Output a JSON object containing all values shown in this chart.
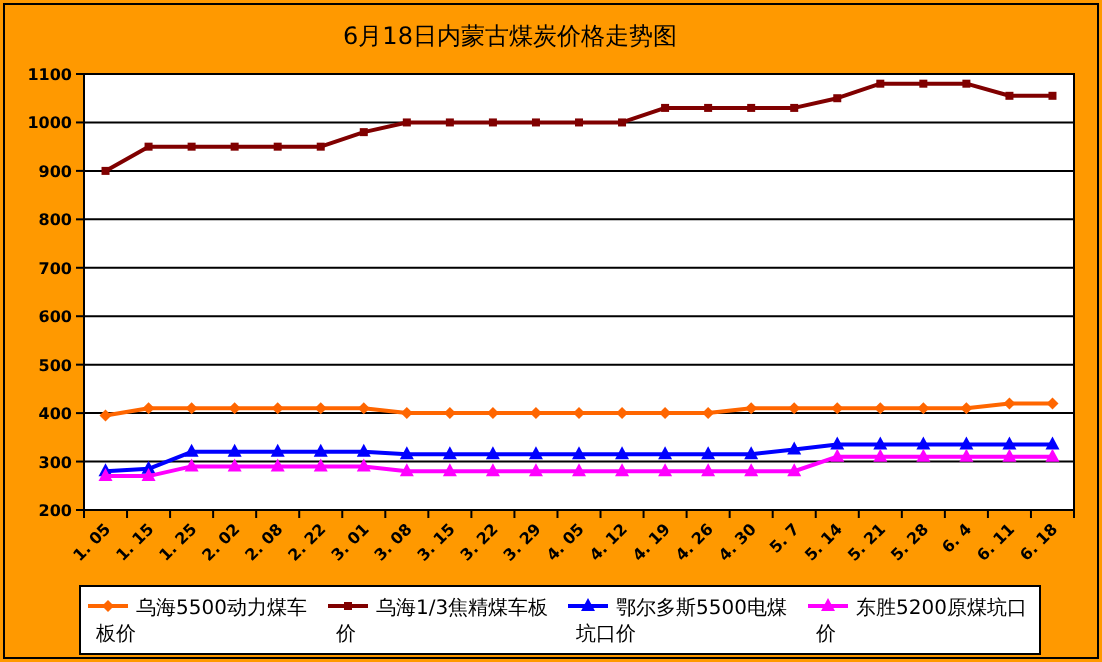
{
  "chart_data": {
    "type": "line",
    "title": "6月18日内蒙古煤炭价格走势图",
    "categories": [
      "1. 05",
      "1. 15",
      "1. 25",
      "2. 02",
      "2. 08",
      "2. 22",
      "3. 01",
      "3. 08",
      "3. 15",
      "3. 22",
      "3. 29",
      "4. 05",
      "4. 12",
      "4. 19",
      "4. 26",
      "4. 30",
      "5. 7",
      "5. 14",
      "5. 21",
      "5. 28",
      "6. 4",
      "6. 11",
      "6. 18"
    ],
    "series": [
      {
        "name": "乌海5500动力煤车板价",
        "color": "#ff6600",
        "marker": "diamond",
        "values": [
          395,
          410,
          410,
          410,
          410,
          410,
          410,
          400,
          400,
          400,
          400,
          400,
          400,
          400,
          400,
          410,
          410,
          410,
          410,
          410,
          410,
          420,
          420
        ]
      },
      {
        "name": "乌海1/3焦精煤车板价",
        "color": "#800000",
        "marker": "square",
        "values": [
          900,
          950,
          950,
          950,
          950,
          950,
          980,
          1000,
          1000,
          1000,
          1000,
          1000,
          1000,
          1030,
          1030,
          1030,
          1030,
          1050,
          1080,
          1080,
          1080,
          1055,
          1055
        ]
      },
      {
        "name": "鄂尔多斯5500电煤坑口价",
        "color": "#0000ff",
        "marker": "triangle",
        "values": [
          280,
          285,
          320,
          320,
          320,
          320,
          320,
          315,
          315,
          315,
          315,
          315,
          315,
          315,
          315,
          315,
          325,
          335,
          335,
          335,
          335,
          335,
          335
        ]
      },
      {
        "name": "东胜5200原煤坑口价",
        "color": "#ff00ff",
        "marker": "triangle",
        "values": [
          270,
          270,
          290,
          290,
          290,
          290,
          290,
          280,
          280,
          280,
          280,
          280,
          280,
          280,
          280,
          280,
          280,
          310,
          310,
          310,
          310,
          310,
          310
        ]
      }
    ],
    "ylim": [
      200,
      1100
    ],
    "yticks": [
      200,
      300,
      400,
      500,
      600,
      700,
      800,
      900,
      1000,
      1100
    ],
    "grid": "y",
    "legend": "bottom"
  }
}
